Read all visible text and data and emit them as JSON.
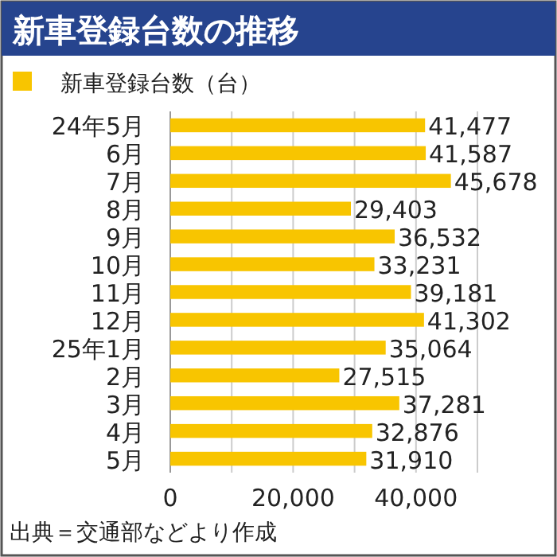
{
  "chart_data": {
    "type": "bar",
    "orientation": "horizontal",
    "title": "新車登録台数の推移",
    "categories": [
      "24年5月",
      "6月",
      "7月",
      "8月",
      "9月",
      "10月",
      "11月",
      "12月",
      "25年1月",
      "2月",
      "3月",
      "4月",
      "5月"
    ],
    "series": [
      {
        "name": "新車登録台数（台）",
        "color": "#f8c500",
        "values": [
          41477,
          41587,
          45678,
          29403,
          36532,
          33231,
          39181,
          41302,
          35064,
          27515,
          37281,
          32876,
          31910
        ],
        "value_labels": [
          "41,477",
          "41,587",
          "45,678",
          "29,403",
          "36,532",
          "33,231",
          "39,181",
          "41,302",
          "35,064",
          "27,515",
          "37,281",
          "32,876",
          "31,910"
        ]
      }
    ],
    "xlim": [
      0,
      50000
    ],
    "xticks": [
      0,
      {
        "value": 10000,
        "label": null
      },
      {
        "value": 20000,
        "label": "20,000"
      },
      {
        "value": 30000,
        "label": null
      },
      {
        "value": 40000,
        "label": "40,000"
      },
      {
        "value": 50000,
        "label": null
      }
    ],
    "grid": "x",
    "legend": "top left",
    "annotations": [
      "出典＝交通部などより作成"
    ]
  }
}
